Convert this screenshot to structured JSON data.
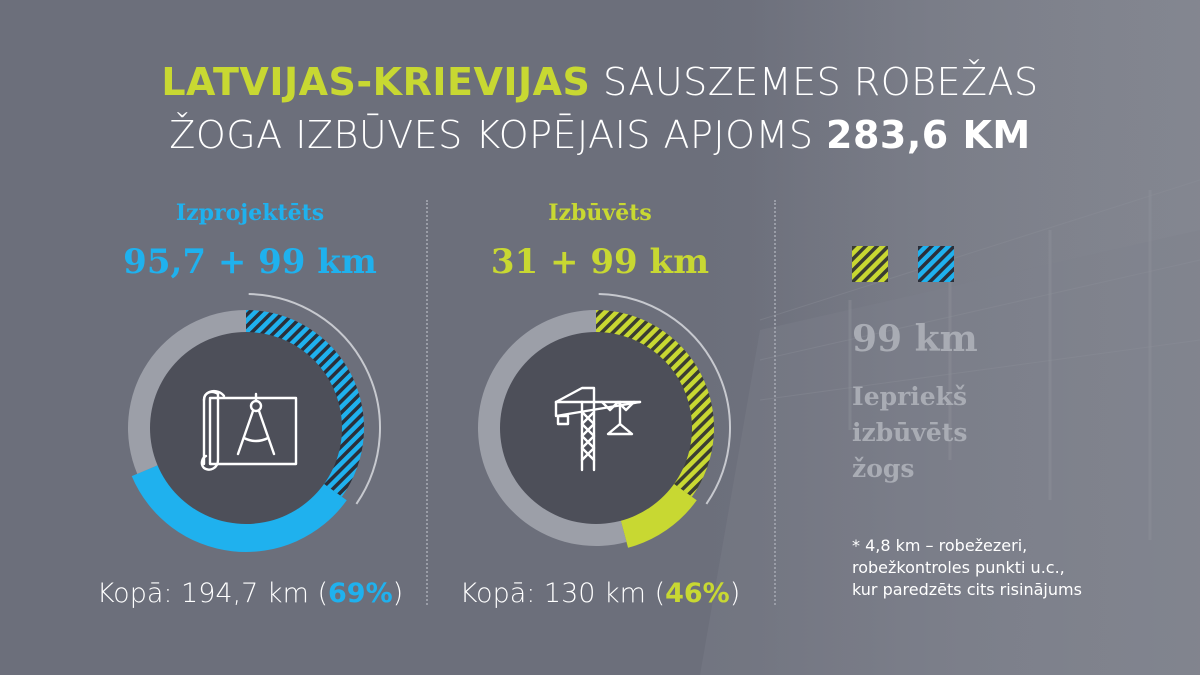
{
  "header": {
    "title_line1_highlight": "LATVIJAS-KRIEVIJAS",
    "title_line1_rest": "SAUSZEMES ROBEŽAS",
    "title_line2_rest": "ŽOGA IZBŪVES KOPĒJAIS APJOMS",
    "title_line2_value": "283,6 KM"
  },
  "colors": {
    "blue": "#1fb1ee",
    "lime": "#c8d832",
    "gray_ring": "#9c9fa8",
    "inner_disk": "#4d4f59",
    "background": "#6e717d"
  },
  "chart_data": [
    {
      "type": "pie",
      "title": "Izprojektēts",
      "value_label": "95,7 + 99 km",
      "icon": "blueprint-compass-icon",
      "segments": [
        {
          "name": "previous",
          "value": 99,
          "pattern": "hatched",
          "color": "#1fb1ee"
        },
        {
          "name": "new",
          "value": 95.7,
          "pattern": "solid",
          "color": "#1fb1ee"
        },
        {
          "name": "remaining",
          "value": 88.9,
          "pattern": "solid",
          "color": "#9c9fa8"
        }
      ],
      "total": 283.6,
      "total_label_prefix": "Kopā: 194,7 km (",
      "total_percent": "69%",
      "total_label_suffix": ")"
    },
    {
      "type": "pie",
      "title": "Izbūvēts",
      "value_label": "31 + 99 km",
      "icon": "tower-crane-icon",
      "segments": [
        {
          "name": "previous",
          "value": 99,
          "pattern": "hatched",
          "color": "#c8d832"
        },
        {
          "name": "new",
          "value": 31,
          "pattern": "solid",
          "color": "#c8d832"
        },
        {
          "name": "remaining",
          "value": 153.6,
          "pattern": "solid",
          "color": "#9c9fa8"
        }
      ],
      "total": 283.6,
      "total_label_prefix": "Kopā: 130 km (",
      "total_percent": "46%",
      "total_label_suffix": ")"
    }
  ],
  "legend": {
    "value": "99 km",
    "line1": "Iepriekš",
    "line2": "izbūvēts",
    "line3": "žogs"
  },
  "footnote": {
    "line1": "* 4,8 km – robežezeri,",
    "line2": "robežkontroles punkti u.c.,",
    "line3": "kur paredzēts cits risinājums"
  }
}
